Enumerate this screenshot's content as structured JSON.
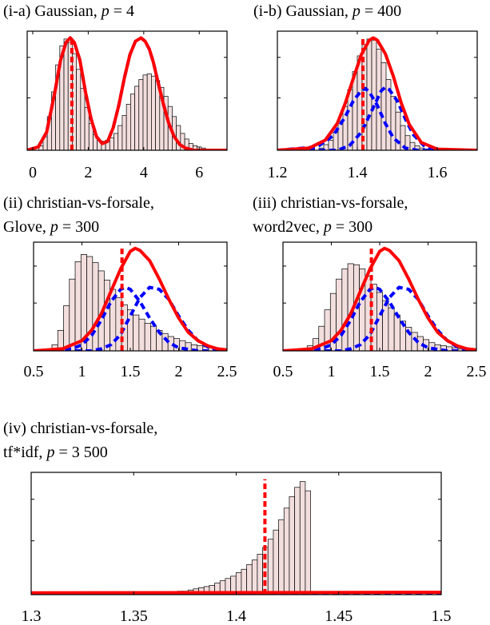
{
  "colors": {
    "histogram_fill": "#f3dede",
    "histogram_edge": "#000000",
    "solid_curve": "#ff0000",
    "dashed_curve_blue": "#0000ff",
    "dashed_line_red": "#ff0000"
  },
  "chart_data": [
    {
      "type": "bar",
      "title_parts": [
        "(i-a) Gaussian, ",
        "p",
        " = 4"
      ],
      "xlim": [
        -0.2,
        7
      ],
      "ylim": [
        0,
        1.06
      ],
      "xticks": [
        0,
        2,
        4,
        6
      ],
      "xtick_labels": [
        "0",
        "2",
        "4",
        "6"
      ],
      "grid": false,
      "histogram": {
        "centers": [
          0.3,
          0.45,
          0.6,
          0.75,
          0.9,
          1.05,
          1.2,
          1.35,
          1.5,
          1.65,
          1.8,
          1.95,
          2.1,
          2.25,
          2.4,
          2.55,
          2.7,
          2.85,
          3.0,
          3.15,
          3.3,
          3.45,
          3.6,
          3.75,
          3.9,
          4.05,
          4.2,
          4.35,
          4.5,
          4.65,
          4.8,
          4.95,
          5.1,
          5.25,
          5.4,
          5.55,
          5.7,
          5.85,
          6.0,
          6.15,
          6.3,
          6.45
        ],
        "heights": [
          0.04,
          0.12,
          0.3,
          0.52,
          0.76,
          0.93,
          0.99,
          0.96,
          0.86,
          0.72,
          0.55,
          0.38,
          0.24,
          0.14,
          0.09,
          0.08,
          0.09,
          0.11,
          0.15,
          0.22,
          0.31,
          0.41,
          0.5,
          0.57,
          0.63,
          0.67,
          0.68,
          0.66,
          0.62,
          0.56,
          0.48,
          0.39,
          0.3,
          0.22,
          0.15,
          0.1,
          0.06,
          0.04,
          0.03,
          0.02,
          0.01,
          0.01
        ]
      },
      "solid_curve": {
        "x": [
          -0.2,
          0.2,
          0.5,
          0.8,
          1.0,
          1.2,
          1.35,
          1.5,
          1.7,
          1.9,
          2.1,
          2.3,
          2.5,
          2.7,
          2.9,
          3.1,
          3.3,
          3.5,
          3.7,
          3.9,
          4.05,
          4.2,
          4.35,
          4.5,
          4.7,
          4.9,
          5.1,
          5.3,
          5.5,
          5.8,
          6.2,
          7.0
        ],
        "y": [
          0.0,
          0.03,
          0.16,
          0.52,
          0.8,
          0.96,
          1.0,
          0.96,
          0.8,
          0.52,
          0.28,
          0.12,
          0.06,
          0.08,
          0.2,
          0.4,
          0.64,
          0.85,
          0.97,
          1.0,
          0.97,
          0.9,
          0.78,
          0.62,
          0.42,
          0.24,
          0.12,
          0.05,
          0.02,
          0.0,
          0.0,
          0.0
        ]
      },
      "dashed_curves": [
        {
          "x": [
            -0.2,
            0.2,
            0.5,
            0.8,
            1.0,
            1.2,
            1.35,
            1.5,
            1.7,
            1.9,
            2.1,
            2.3,
            2.5,
            2.7,
            2.9,
            3.1,
            3.3,
            3.5,
            3.7,
            3.9,
            4.05,
            4.2,
            4.35,
            4.5,
            4.7,
            4.9,
            5.1,
            5.3,
            5.5,
            5.8,
            6.2,
            7.0
          ],
          "y": [
            0.0,
            0.03,
            0.16,
            0.52,
            0.8,
            0.96,
            1.0,
            0.96,
            0.8,
            0.52,
            0.28,
            0.12,
            0.06,
            0.08,
            0.2,
            0.4,
            0.64,
            0.85,
            0.97,
            1.0,
            0.97,
            0.9,
            0.78,
            0.62,
            0.42,
            0.24,
            0.12,
            0.05,
            0.02,
            0.0,
            0.0,
            0.0
          ]
        }
      ],
      "threshold_x": 1.41
    },
    {
      "type": "bar",
      "title_parts": [
        "(i-b) Gaussian, ",
        "p",
        " = 400"
      ],
      "xlim": [
        1.2,
        1.7
      ],
      "ylim": [
        0,
        1.06
      ],
      "xticks": [
        1.2,
        1.4,
        1.6
      ],
      "xtick_labels": [
        "1.2",
        "1.4",
        "1.6"
      ],
      "grid": false,
      "histogram": {
        "centers": [
          1.31,
          1.322,
          1.334,
          1.346,
          1.358,
          1.37,
          1.382,
          1.394,
          1.406,
          1.418,
          1.43,
          1.442,
          1.454,
          1.466,
          1.478,
          1.49,
          1.502,
          1.514,
          1.526,
          1.538,
          1.55,
          1.562,
          1.574,
          1.586
        ],
        "heights": [
          0.02,
          0.05,
          0.09,
          0.16,
          0.26,
          0.39,
          0.54,
          0.7,
          0.84,
          0.94,
          0.99,
          0.98,
          0.9,
          0.78,
          0.63,
          0.48,
          0.34,
          0.22,
          0.13,
          0.07,
          0.04,
          0.02,
          0.01,
          0.005
        ]
      },
      "solid_curve": {
        "x": [
          1.2,
          1.28,
          1.32,
          1.35,
          1.37,
          1.39,
          1.41,
          1.43,
          1.44,
          1.45,
          1.47,
          1.49,
          1.51,
          1.53,
          1.56,
          1.6,
          1.7
        ],
        "y": [
          0.0,
          0.02,
          0.09,
          0.24,
          0.42,
          0.64,
          0.85,
          0.98,
          1.0,
          0.98,
          0.86,
          0.66,
          0.42,
          0.23,
          0.07,
          0.01,
          0.0
        ]
      },
      "dashed_curves": [
        {
          "x": [
            1.2,
            1.3,
            1.34,
            1.37,
            1.39,
            1.41,
            1.42,
            1.43,
            1.45,
            1.47,
            1.49,
            1.52,
            1.55,
            1.7
          ],
          "y": [
            0.0,
            0.03,
            0.13,
            0.3,
            0.44,
            0.53,
            0.55,
            0.52,
            0.4,
            0.24,
            0.11,
            0.02,
            0.0,
            0.0
          ]
        },
        {
          "x": [
            1.2,
            1.35,
            1.38,
            1.41,
            1.44,
            1.46,
            1.47,
            1.48,
            1.5,
            1.52,
            1.54,
            1.57,
            1.6,
            1.7
          ],
          "y": [
            0.0,
            0.0,
            0.04,
            0.16,
            0.38,
            0.53,
            0.56,
            0.54,
            0.44,
            0.28,
            0.14,
            0.03,
            0.0,
            0.0
          ]
        }
      ],
      "threshold_x": 1.414
    },
    {
      "type": "bar",
      "title_parts": [
        "(ii) christian-vs-forsale,",
        "Glove, ",
        "p",
        " = 300"
      ],
      "xlim": [
        0.5,
        2.5
      ],
      "ylim": [
        0,
        1.06
      ],
      "xticks": [
        0.5,
        1,
        1.5,
        2,
        2.5
      ],
      "xtick_labels": [
        "0.5",
        "1",
        "1.5",
        "2",
        "2.5"
      ],
      "grid": false,
      "histogram": {
        "centers": [
          0.72,
          0.78,
          0.84,
          0.9,
          0.96,
          1.02,
          1.08,
          1.14,
          1.2,
          1.26,
          1.32,
          1.38,
          1.44,
          1.5,
          1.56,
          1.62,
          1.68,
          1.74,
          1.8,
          1.86,
          1.92,
          1.98,
          2.04,
          2.1,
          2.16,
          2.22,
          2.28,
          2.34,
          2.4,
          2.46
        ],
        "heights": [
          0.06,
          0.2,
          0.44,
          0.7,
          0.87,
          0.94,
          0.92,
          0.86,
          0.78,
          0.69,
          0.6,
          0.52,
          0.45,
          0.4,
          0.35,
          0.31,
          0.27,
          0.24,
          0.2,
          0.17,
          0.14,
          0.12,
          0.1,
          0.08,
          0.06,
          0.05,
          0.04,
          0.03,
          0.02,
          0.01
        ]
      },
      "solid_curve": {
        "x": [
          0.5,
          0.8,
          1.0,
          1.1,
          1.2,
          1.3,
          1.4,
          1.5,
          1.55,
          1.6,
          1.7,
          1.8,
          1.9,
          2.0,
          2.1,
          2.2,
          2.3,
          2.4,
          2.5
        ],
        "y": [
          0.0,
          0.02,
          0.1,
          0.2,
          0.36,
          0.58,
          0.8,
          0.97,
          1.0,
          0.98,
          0.88,
          0.7,
          0.5,
          0.32,
          0.18,
          0.1,
          0.05,
          0.02,
          0.01
        ]
      },
      "dashed_curves": [
        {
          "x": [
            0.5,
            0.9,
            1.0,
            1.1,
            1.2,
            1.3,
            1.4,
            1.45,
            1.5,
            1.6,
            1.7,
            1.8,
            1.9,
            2.0,
            2.2,
            2.5
          ],
          "y": [
            0.0,
            0.02,
            0.06,
            0.15,
            0.3,
            0.48,
            0.6,
            0.62,
            0.6,
            0.48,
            0.32,
            0.18,
            0.08,
            0.03,
            0.0,
            0.0
          ]
        },
        {
          "x": [
            0.5,
            1.1,
            1.2,
            1.3,
            1.4,
            1.5,
            1.6,
            1.7,
            1.8,
            1.9,
            2.0,
            2.1,
            2.2,
            2.3,
            2.5
          ],
          "y": [
            0.0,
            0.0,
            0.02,
            0.06,
            0.16,
            0.34,
            0.52,
            0.62,
            0.6,
            0.5,
            0.34,
            0.2,
            0.1,
            0.04,
            0.0
          ]
        }
      ],
      "threshold_x": 1.414
    },
    {
      "type": "bar",
      "title_parts": [
        "(iii) christian-vs-forsale,",
        "word2vec, ",
        "p",
        " = 300"
      ],
      "xlim": [
        0.5,
        2.5
      ],
      "ylim": [
        0,
        1.06
      ],
      "xticks": [
        0.5,
        1,
        1.5,
        2,
        2.5
      ],
      "xtick_labels": [
        "0.5",
        "1",
        "1.5",
        "2",
        "2.5"
      ],
      "grid": false,
      "histogram": {
        "centers": [
          0.72,
          0.78,
          0.84,
          0.9,
          0.96,
          1.02,
          1.08,
          1.14,
          1.2,
          1.26,
          1.32,
          1.38,
          1.44,
          1.5,
          1.56,
          1.62,
          1.68,
          1.74,
          1.8,
          1.86,
          1.92,
          1.98,
          2.04,
          2.1,
          2.16,
          2.22,
          2.28,
          2.34,
          2.4,
          2.46
        ],
        "heights": [
          0.02,
          0.05,
          0.12,
          0.24,
          0.4,
          0.56,
          0.7,
          0.8,
          0.85,
          0.84,
          0.8,
          0.73,
          0.65,
          0.57,
          0.49,
          0.42,
          0.35,
          0.29,
          0.23,
          0.18,
          0.14,
          0.11,
          0.08,
          0.06,
          0.05,
          0.04,
          0.03,
          0.02,
          0.01,
          0.01
        ]
      },
      "solid_curve": {
        "x": [
          0.5,
          0.8,
          1.0,
          1.1,
          1.2,
          1.3,
          1.4,
          1.5,
          1.55,
          1.6,
          1.7,
          1.8,
          1.9,
          2.0,
          2.1,
          2.2,
          2.3,
          2.4,
          2.5
        ],
        "y": [
          0.0,
          0.02,
          0.1,
          0.2,
          0.36,
          0.58,
          0.8,
          0.97,
          1.0,
          0.98,
          0.88,
          0.7,
          0.5,
          0.32,
          0.18,
          0.1,
          0.05,
          0.02,
          0.01
        ]
      },
      "dashed_curves": [
        {
          "x": [
            0.5,
            0.9,
            1.0,
            1.1,
            1.2,
            1.3,
            1.4,
            1.45,
            1.5,
            1.6,
            1.7,
            1.8,
            1.9,
            2.0,
            2.2,
            2.5
          ],
          "y": [
            0.0,
            0.02,
            0.06,
            0.15,
            0.3,
            0.48,
            0.6,
            0.62,
            0.6,
            0.48,
            0.32,
            0.18,
            0.08,
            0.03,
            0.0,
            0.0
          ]
        },
        {
          "x": [
            0.5,
            1.1,
            1.2,
            1.3,
            1.4,
            1.5,
            1.6,
            1.7,
            1.8,
            1.9,
            2.0,
            2.1,
            2.2,
            2.3,
            2.5
          ],
          "y": [
            0.0,
            0.0,
            0.02,
            0.06,
            0.16,
            0.34,
            0.52,
            0.62,
            0.6,
            0.5,
            0.34,
            0.2,
            0.1,
            0.04,
            0.0
          ]
        }
      ],
      "threshold_x": 1.414
    },
    {
      "type": "bar",
      "title_parts": [
        "(iv) christian-vs-forsale,",
        "tf*idf, ",
        "p",
        " = 3 500"
      ],
      "xlim": [
        1.3,
        1.5
      ],
      "ylim": [
        0,
        1.06
      ],
      "xticks": [
        1.3,
        1.35,
        1.4,
        1.45,
        1.5
      ],
      "xtick_labels": [
        "1.3",
        "1.35",
        "1.4",
        "1.45",
        "1.5"
      ],
      "grid": false,
      "histogram": {
        "centers": [
          1.3622,
          1.3648,
          1.3674,
          1.37,
          1.3726,
          1.3752,
          1.3778,
          1.3804,
          1.383,
          1.3856,
          1.3882,
          1.3908,
          1.3934,
          1.396,
          1.3986,
          1.4012,
          1.4038,
          1.4064,
          1.409,
          1.4116,
          1.4142,
          1.4168,
          1.4194,
          1.422,
          1.4246,
          1.4272,
          1.4298,
          1.4324,
          1.435
        ],
        "heights": [
          0.01,
          0.01,
          0.02,
          0.02,
          0.03,
          0.03,
          0.04,
          0.05,
          0.06,
          0.07,
          0.08,
          0.1,
          0.12,
          0.14,
          0.16,
          0.19,
          0.22,
          0.26,
          0.3,
          0.35,
          0.41,
          0.48,
          0.56,
          0.65,
          0.75,
          0.85,
          0.93,
          0.98,
          0.9
        ]
      },
      "solid_curve": {
        "x": [
          1.3,
          1.5
        ],
        "y": [
          0.015,
          0.02
        ]
      },
      "dashed_curves": [
        {
          "x": [
            1.3,
            1.5
          ],
          "y": [
            0.008,
            0.008
          ]
        }
      ],
      "threshold_x": 1.414
    }
  ]
}
